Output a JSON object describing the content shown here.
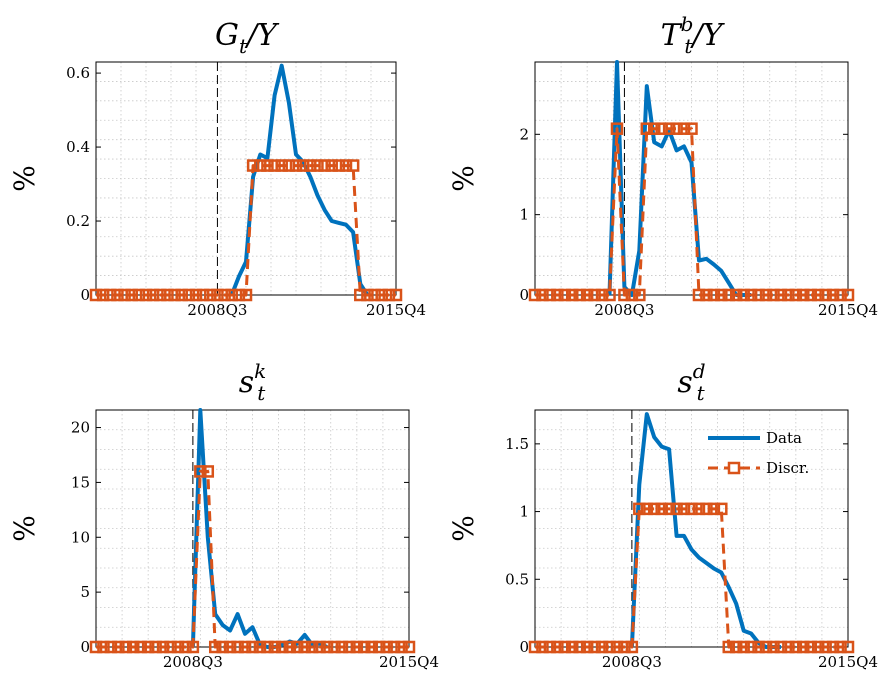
{
  "chart_data": [
    {
      "type": "line",
      "title": {
        "base": "G",
        "sub": "t",
        "sup": "",
        "rest": "/Y"
      },
      "ylabel": "%",
      "ylim": [
        0,
        0.63
      ],
      "yticks": [
        0,
        0.2,
        0.4,
        0.6
      ],
      "ytick_labels": [
        "0",
        "0.2",
        "0.4",
        "0.6"
      ],
      "xrange": [
        0,
        42
      ],
      "xtick_positions": [
        17,
        42
      ],
      "xtick_labels": [
        "2008Q3",
        "2015Q4"
      ],
      "vline_x": 17,
      "series": [
        {
          "name": "Data",
          "x": [
            19,
            20,
            21,
            22,
            23,
            24,
            25,
            26,
            27,
            28,
            29,
            30,
            31,
            32,
            33,
            34,
            35,
            36,
            37,
            38
          ],
          "values": [
            0,
            0.05,
            0.09,
            0.32,
            0.38,
            0.37,
            0.54,
            0.62,
            0.52,
            0.38,
            0.36,
            0.32,
            0.27,
            0.23,
            0.2,
            0.195,
            0.19,
            0.17,
            0.03,
            0
          ]
        },
        {
          "name": "Discr.",
          "x": [
            0,
            1,
            2,
            3,
            4,
            5,
            6,
            7,
            8,
            9,
            10,
            11,
            12,
            13,
            14,
            15,
            16,
            17,
            18,
            19,
            20,
            21,
            22,
            23,
            24,
            25,
            26,
            27,
            28,
            29,
            30,
            31,
            32,
            33,
            34,
            35,
            36,
            37,
            38,
            39,
            40,
            41,
            42
          ],
          "values": [
            0,
            0,
            0,
            0,
            0,
            0,
            0,
            0,
            0,
            0,
            0,
            0,
            0,
            0,
            0,
            0,
            0,
            0,
            0,
            0,
            0,
            0,
            0.35,
            0.35,
            0.35,
            0.35,
            0.35,
            0.35,
            0.35,
            0.35,
            0.35,
            0.35,
            0.35,
            0.35,
            0.35,
            0.35,
            0.35,
            0,
            0,
            0,
            0,
            0,
            0
          ]
        }
      ]
    },
    {
      "type": "line",
      "title": {
        "base": "T",
        "sub": "t",
        "sup": "b",
        "rest": "/Y"
      },
      "ylabel": "%",
      "ylim": [
        0,
        2.9
      ],
      "yticks": [
        0,
        1,
        2
      ],
      "ytick_labels": [
        "0",
        "1",
        "2"
      ],
      "xrange": [
        0,
        42
      ],
      "xtick_positions": [
        12,
        42
      ],
      "xtick_labels": [
        "2008Q3",
        "2015Q4"
      ],
      "vline_x": 12,
      "series": [
        {
          "name": "Data",
          "x": [
            10,
            11,
            12,
            13,
            14,
            15,
            16,
            17,
            18,
            19,
            20,
            21,
            22,
            23,
            24,
            25,
            26,
            27,
            28,
            29
          ],
          "values": [
            0,
            2.9,
            0.1,
            0,
            0.55,
            2.6,
            1.9,
            1.85,
            2.05,
            1.8,
            1.85,
            1.65,
            0.43,
            0.45,
            0.38,
            0.3,
            0.15,
            0,
            0,
            0
          ]
        },
        {
          "name": "Discr.",
          "x": [
            0,
            1,
            2,
            3,
            4,
            5,
            6,
            7,
            8,
            9,
            10,
            11,
            12,
            13,
            14,
            15,
            16,
            17,
            18,
            19,
            20,
            21,
            22,
            23,
            24,
            25,
            26,
            27,
            28,
            29,
            30,
            31,
            32,
            33,
            34,
            35,
            36,
            37,
            38,
            39,
            40,
            41,
            42
          ],
          "values": [
            0,
            0,
            0,
            0,
            0,
            0,
            0,
            0,
            0,
            0,
            0,
            2.07,
            0,
            0,
            0,
            2.07,
            2.07,
            2.07,
            2.07,
            2.07,
            2.07,
            2.07,
            0,
            0,
            0,
            0,
            0,
            0,
            0,
            0,
            0,
            0,
            0,
            0,
            0,
            0,
            0,
            0,
            0,
            0,
            0,
            0,
            0
          ]
        }
      ]
    },
    {
      "type": "line",
      "title": {
        "base": "s",
        "sub": "t",
        "sup": "k",
        "rest": ""
      },
      "ylabel": "%",
      "ylim": [
        0,
        21.6
      ],
      "yticks": [
        0,
        5,
        10,
        15,
        20
      ],
      "ytick_labels": [
        "0",
        "5",
        "10",
        "15",
        "20"
      ],
      "xrange": [
        0,
        42
      ],
      "xtick_positions": [
        13,
        42
      ],
      "xtick_labels": [
        "2008Q3",
        "2015Q4"
      ],
      "vline_x": 13,
      "series": [
        {
          "name": "Data",
          "x": [
            13,
            14,
            15,
            16,
            17,
            18,
            19,
            20,
            21,
            22,
            23,
            24,
            25,
            26,
            27,
            28,
            29,
            30,
            31
          ],
          "values": [
            0,
            21.6,
            10,
            3,
            2,
            1.5,
            3,
            1.2,
            1.8,
            0.2,
            0,
            0,
            0.2,
            0.5,
            0.3,
            1.1,
            0.2,
            0.3,
            0
          ]
        },
        {
          "name": "Discr.",
          "x": [
            0,
            1,
            2,
            3,
            4,
            5,
            6,
            7,
            8,
            9,
            10,
            11,
            12,
            13,
            14,
            15,
            16,
            17,
            18,
            19,
            20,
            21,
            22,
            23,
            24,
            25,
            26,
            27,
            28,
            29,
            30,
            31,
            32,
            33,
            34,
            35,
            36,
            37,
            38,
            39,
            40,
            41,
            42
          ],
          "values": [
            0,
            0,
            0,
            0,
            0,
            0,
            0,
            0,
            0,
            0,
            0,
            0,
            0,
            0,
            16,
            16,
            0,
            0,
            0,
            0,
            0,
            0,
            0,
            0,
            0,
            0,
            0,
            0,
            0,
            0,
            0,
            0,
            0,
            0,
            0,
            0,
            0,
            0,
            0,
            0,
            0,
            0,
            0
          ]
        }
      ]
    },
    {
      "type": "line",
      "title": {
        "base": "s",
        "sub": "t",
        "sup": "d",
        "rest": ""
      },
      "ylabel": "%",
      "ylim": [
        0,
        1.75
      ],
      "yticks": [
        0,
        0.5,
        1,
        1.5
      ],
      "ytick_labels": [
        "0",
        "0.5",
        "1",
        "1.5"
      ],
      "xrange": [
        0,
        42
      ],
      "xtick_positions": [
        13,
        42
      ],
      "xtick_labels": [
        "2008Q3",
        "2015Q4"
      ],
      "vline_x": 13,
      "legend": {
        "position": "top-right",
        "entries": [
          "Data",
          "Discr."
        ]
      },
      "series": [
        {
          "name": "Data",
          "x": [
            13,
            14,
            15,
            16,
            17,
            18,
            19,
            20,
            21,
            22,
            23,
            24,
            25,
            26,
            27,
            28,
            29,
            30,
            31,
            32,
            33
          ],
          "values": [
            0,
            1.2,
            1.72,
            1.55,
            1.48,
            1.46,
            0.82,
            0.82,
            0.72,
            0.66,
            0.62,
            0.58,
            0.55,
            0.44,
            0.32,
            0.12,
            0.1,
            0.03,
            0,
            0,
            0
          ]
        },
        {
          "name": "Discr.",
          "x": [
            0,
            1,
            2,
            3,
            4,
            5,
            6,
            7,
            8,
            9,
            10,
            11,
            12,
            13,
            14,
            15,
            16,
            17,
            18,
            19,
            20,
            21,
            22,
            23,
            24,
            25,
            26,
            27,
            28,
            29,
            30,
            31,
            32,
            33,
            34,
            35,
            36,
            37,
            38,
            39,
            40,
            41,
            42
          ],
          "values": [
            0,
            0,
            0,
            0,
            0,
            0,
            0,
            0,
            0,
            0,
            0,
            0,
            0,
            0,
            1.02,
            1.02,
            1.02,
            1.02,
            1.02,
            1.02,
            1.02,
            1.02,
            1.02,
            1.02,
            1.02,
            1.02,
            0,
            0,
            0,
            0,
            0,
            0,
            0,
            0,
            0,
            0,
            0,
            0,
            0,
            0,
            0,
            0,
            0
          ]
        }
      ]
    }
  ],
  "colors": {
    "data": "#0072BD",
    "discr": "#D95319",
    "grid": "#c8c8c8",
    "axis": "#000000"
  }
}
